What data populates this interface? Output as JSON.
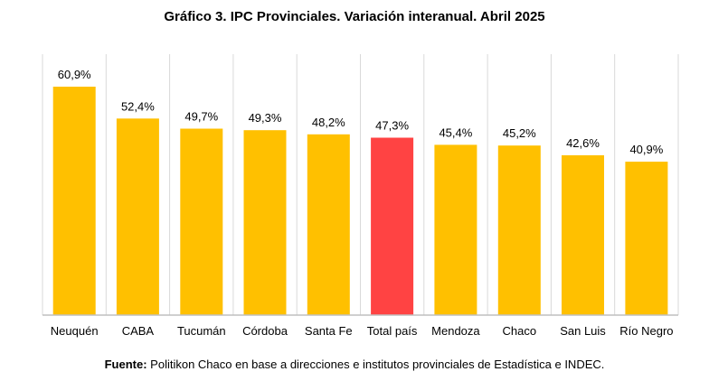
{
  "chart_data": {
    "type": "bar",
    "title": "Gráfico 3. IPC Provinciales. Variación interanual. Abril 2025",
    "categories": [
      "Neuquén",
      "CABA",
      "Tucumán",
      "Córdoba",
      "Santa Fe",
      "Total país",
      "Mendoza",
      "Chaco",
      "San Luis",
      "Río Negro"
    ],
    "values": [
      60.9,
      52.4,
      49.7,
      49.3,
      48.2,
      47.3,
      45.4,
      45.2,
      42.6,
      40.9
    ],
    "value_labels": [
      "60,9%",
      "52,4%",
      "49,7%",
      "49,3%",
      "48,2%",
      "47,3%",
      "45,4%",
      "45,2%",
      "42,6%",
      "40,9%"
    ],
    "highlight_category": "Total país",
    "colors": {
      "bar": "#FFC000",
      "highlight": "#FF4343",
      "grid": "#D9D9D9",
      "axis": "#BFBFBF"
    },
    "ylim": [
      0,
      60.9
    ],
    "grid": "vertical",
    "xlabel": "",
    "ylabel": ""
  },
  "source": {
    "label": "Fuente:",
    "text": " Politikon Chaco en base a direcciones e institutos provinciales de Estadística e INDEC."
  }
}
